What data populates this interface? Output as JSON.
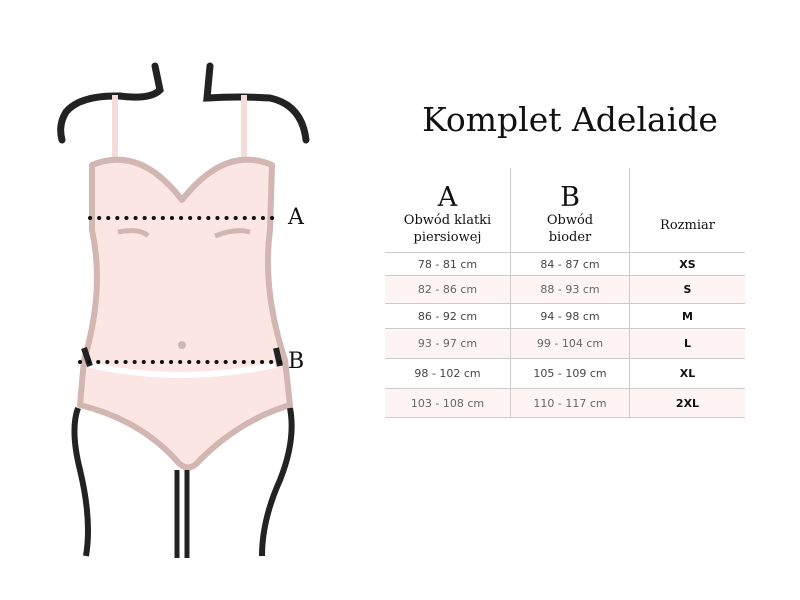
{
  "title": "Komplet Adelaide",
  "figure": {
    "marker_a": "A",
    "marker_b": "B",
    "body_color": "#fbe6e3",
    "outline_color": "#d2b6b2",
    "strap_color": "#222222"
  },
  "table": {
    "headers": [
      {
        "letter": "A",
        "line1": "Obwód klatki",
        "line2": "piersiowej"
      },
      {
        "letter": "B",
        "line1": "Obwód",
        "line2": "bioder"
      },
      {
        "label": "Rozmiar"
      }
    ],
    "rows": [
      {
        "a": "78  - 81 cm",
        "b": "84 - 87 cm",
        "size": "XS"
      },
      {
        "a": "82 - 86 cm",
        "b": "88 - 93 cm",
        "size": "S"
      },
      {
        "a": "86 - 92 cm",
        "b": "94 - 98 cm",
        "size": "M"
      },
      {
        "a": "93 - 97 cm",
        "b": "99 - 104 cm",
        "size": "L"
      },
      {
        "a": "98 - 102 cm",
        "b": "105 - 109 cm",
        "size": "XL"
      },
      {
        "a": "103 - 108 cm",
        "b": "110 - 117 cm",
        "size": "2XL"
      }
    ]
  }
}
